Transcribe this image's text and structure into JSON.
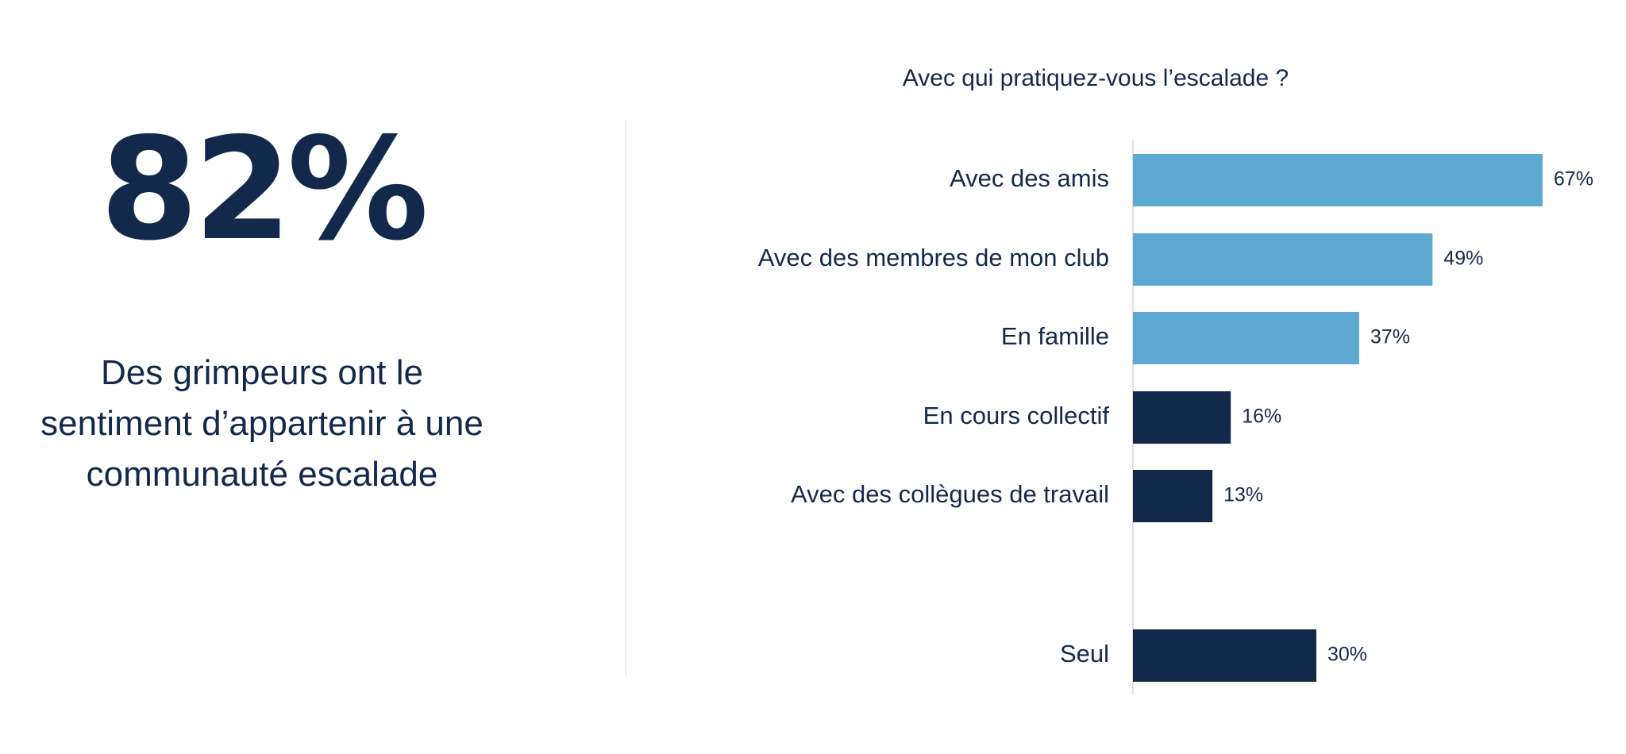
{
  "highlight": {
    "value": "82%",
    "caption": "Des grimpeurs ont le sentiment d’appartenir à une communauté escalade"
  },
  "chart_data": {
    "type": "bar",
    "orientation": "horizontal",
    "title": "Avec qui pratiquez-vous l’escalade ?",
    "xlabel": "",
    "ylabel": "",
    "xlim": [
      0,
      100
    ],
    "grid": false,
    "categories": [
      "Avec des amis",
      "Avec des membres de mon club",
      "En famille",
      "En cours collectif",
      "Avec des collègues de travail",
      "Seul"
    ],
    "values": [
      67,
      49,
      37,
      16,
      13,
      30
    ],
    "data_labels": [
      "67%",
      "49%",
      "37%",
      "16%",
      "13%",
      "30%"
    ],
    "colors": [
      "#5ea9d1",
      "#5ea9d1",
      "#5ea9d1",
      "#13294b",
      "#13294b",
      "#13294b"
    ]
  },
  "colors": {
    "light_blue": "#5ea9d1",
    "navy": "#13294b"
  }
}
